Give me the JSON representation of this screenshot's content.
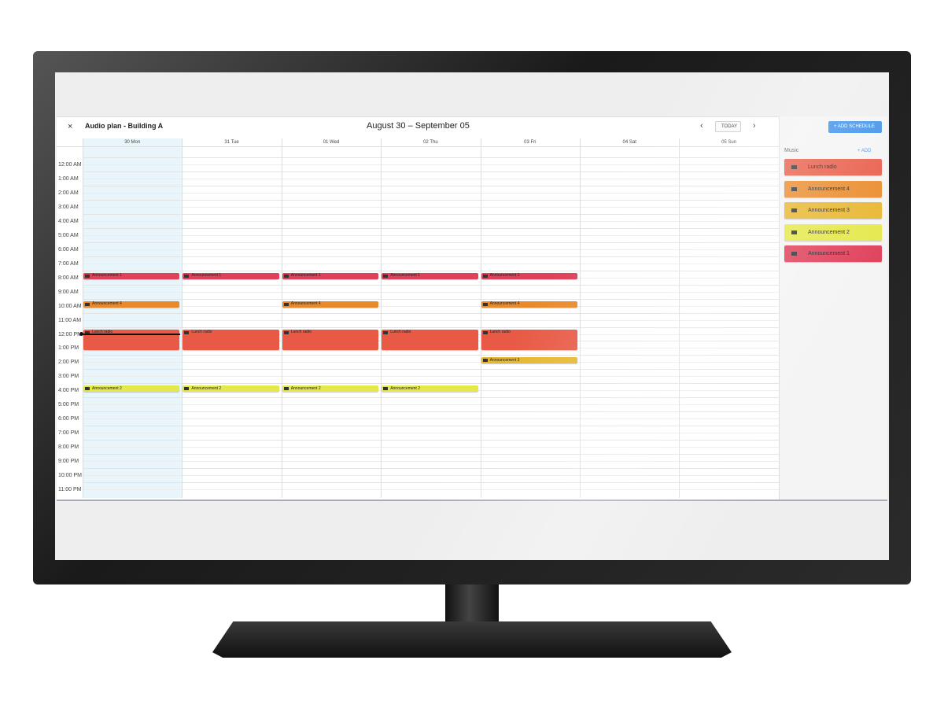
{
  "header": {
    "close": "×",
    "title": "Audio plan - Building A",
    "date_range": "August 30 – September 05",
    "prev": "‹",
    "today": "TODAY",
    "next": "›"
  },
  "sidebar": {
    "add_schedule": "+ ADD SCHEDULE",
    "section": "Music",
    "add": "+ ADD",
    "items": [
      {
        "label": "Lunch radio",
        "color": "#e85a45"
      },
      {
        "label": "Announcement 4",
        "color": "#e98a2a"
      },
      {
        "label": "Announcement 3",
        "color": "#e8b62e"
      },
      {
        "label": "Announcement 2",
        "color": "#e5e84a"
      },
      {
        "label": "Announcement 1",
        "color": "#e0405a"
      }
    ]
  },
  "hours": [
    "12:00 AM",
    "1:00 AM",
    "2:00 AM",
    "3:00 AM",
    "4:00 AM",
    "5:00 AM",
    "6:00 AM",
    "7:00 AM",
    "8:00 AM",
    "9:00 AM",
    "10:00 AM",
    "11:00 AM",
    "12:00 PM",
    "1:00 PM",
    "2:00 PM",
    "3:00 PM",
    "4:00 PM",
    "5:00 PM",
    "6:00 PM",
    "7:00 PM",
    "8:00 PM",
    "9:00 PM",
    "10:00 PM",
    "11:00 PM"
  ],
  "days": [
    {
      "label": "30 Mon",
      "events": [
        {
          "item": 4,
          "start": "8:00 AM"
        },
        {
          "item": 1,
          "start": "10:00 AM"
        },
        {
          "item": 0,
          "start": "12:00 PM",
          "end": "1:00 PM"
        },
        {
          "item": 3,
          "start": "4:00 PM"
        }
      ]
    },
    {
      "label": "31 Tue",
      "events": [
        {
          "item": 4,
          "start": "8:00 AM"
        },
        {
          "item": 0,
          "start": "12:00 PM",
          "end": "1:00 PM"
        },
        {
          "item": 3,
          "start": "4:00 PM"
        }
      ]
    },
    {
      "label": "01 Wed",
      "events": [
        {
          "item": 4,
          "start": "8:00 AM"
        },
        {
          "item": 1,
          "start": "10:00 AM"
        },
        {
          "item": 0,
          "start": "12:00 PM",
          "end": "1:00 PM"
        },
        {
          "item": 3,
          "start": "4:00 PM"
        }
      ]
    },
    {
      "label": "02 Thu",
      "events": [
        {
          "item": 4,
          "start": "8:00 AM"
        },
        {
          "item": 0,
          "start": "12:00 PM",
          "end": "1:00 PM"
        },
        {
          "item": 3,
          "start": "4:00 PM"
        }
      ]
    },
    {
      "label": "03 Fri",
      "events": [
        {
          "item": 4,
          "start": "8:00 AM"
        },
        {
          "item": 1,
          "start": "10:00 AM"
        },
        {
          "item": 0,
          "start": "12:00 PM",
          "end": "1:00 PM"
        },
        {
          "item": 2,
          "start": "2:00 PM"
        }
      ]
    },
    {
      "label": "04 Sat",
      "events": []
    },
    {
      "label": "05 Sun",
      "events": []
    }
  ]
}
